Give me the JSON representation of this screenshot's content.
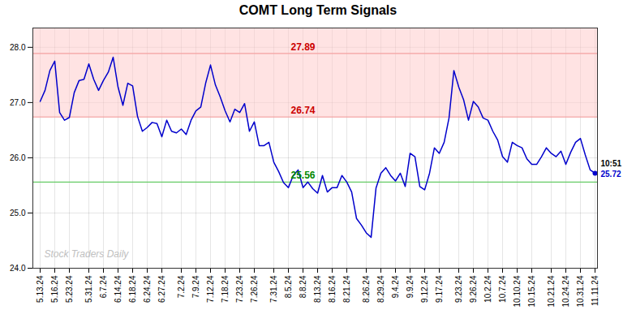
{
  "chart_data": {
    "type": "line",
    "title": "COMT Long Term Signals",
    "color": "#0000cc",
    "grid": true,
    "ylim": [
      24.0,
      28.35
    ],
    "yticks": [
      24,
      25,
      26,
      27,
      28
    ],
    "categories": [
      "5.13.24",
      null,
      null,
      "5.16.24",
      null,
      null,
      "5.23.24",
      null,
      null,
      null,
      "5.31.24",
      null,
      null,
      "6.7.24",
      null,
      null,
      "6.14.24",
      null,
      null,
      "6.18.24",
      null,
      null,
      "6.24.24",
      null,
      null,
      "6.27.24",
      null,
      null,
      null,
      "7.2.24",
      null,
      null,
      "7.9.24",
      null,
      null,
      "7.12.24",
      null,
      null,
      "7.18.24",
      null,
      null,
      "7.23.24",
      null,
      null,
      "7.26.24",
      null,
      null,
      null,
      "7.31.24",
      null,
      null,
      "8.5.24",
      null,
      null,
      "8.8.24",
      null,
      null,
      "8.13.24",
      null,
      null,
      "8.16.24",
      null,
      null,
      "8.21.24",
      null,
      null,
      null,
      "8.26.24",
      null,
      null,
      "8.29.24",
      null,
      null,
      "9.4.24",
      null,
      null,
      "9.9.24",
      null,
      null,
      "9.12.24",
      null,
      null,
      "9.17.24",
      null,
      null,
      null,
      "9.23.24",
      null,
      null,
      "9.26.24",
      null,
      null,
      "10.2.24",
      null,
      null,
      "10.7.24",
      null,
      null,
      "10.10.24",
      null,
      null,
      "10.15.24",
      null,
      null,
      null,
      "10.21.24",
      null,
      null,
      "10.24.24",
      null,
      null,
      "10.31.24",
      null,
      null,
      "11.11.24"
    ],
    "values": [
      27.02,
      27.22,
      27.58,
      27.75,
      26.82,
      26.68,
      26.73,
      27.18,
      27.4,
      27.42,
      27.7,
      27.42,
      27.22,
      27.4,
      27.55,
      27.82,
      27.28,
      26.95,
      27.35,
      27.3,
      26.75,
      26.48,
      26.55,
      26.64,
      26.62,
      26.38,
      26.68,
      26.48,
      26.45,
      26.52,
      26.42,
      26.68,
      26.85,
      26.92,
      27.35,
      27.68,
      27.32,
      27.1,
      26.85,
      26.65,
      26.88,
      26.82,
      26.98,
      26.48,
      26.65,
      26.22,
      26.22,
      26.28,
      25.92,
      25.75,
      25.55,
      25.46,
      25.68,
      25.78,
      25.46,
      25.56,
      25.44,
      25.36,
      25.68,
      25.38,
      25.46,
      25.46,
      25.68,
      25.56,
      25.38,
      24.9,
      24.78,
      24.64,
      24.56,
      25.45,
      25.72,
      25.82,
      25.68,
      25.58,
      25.72,
      25.48,
      26.08,
      26.02,
      25.48,
      25.42,
      25.72,
      26.18,
      26.08,
      26.28,
      26.72,
      27.58,
      27.28,
      27.05,
      26.68,
      27.02,
      26.92,
      26.72,
      26.68,
      26.48,
      26.32,
      26.02,
      25.92,
      26.28,
      26.22,
      26.18,
      25.98,
      25.88,
      25.88,
      26.02,
      26.18,
      26.08,
      26.02,
      26.12,
      25.88,
      26.1,
      26.28,
      26.35,
      26.05,
      25.78,
      25.72
    ],
    "bands": [
      {
        "from": 26.74,
        "to": 27.89,
        "color": "#ffcccc"
      },
      {
        "from": 27.89,
        "to": 28.35,
        "color": "#ffcccc"
      }
    ],
    "hlines": [
      {
        "value": 27.89,
        "label": "27.89",
        "color": "#f4a0a0",
        "label_color": "#cc0000"
      },
      {
        "value": 26.74,
        "label": "26.74",
        "color": "#f4a0a0",
        "label_color": "#cc0000"
      },
      {
        "value": 25.56,
        "label": "25.56",
        "color": "#66cc66",
        "label_color": "#008800"
      }
    ],
    "annotations": [
      {
        "text": "10:51",
        "color": "black"
      },
      {
        "text": "25.72",
        "color": "#0000cc"
      }
    ],
    "watermark": {
      "text": "Stock Traders Daily",
      "color": "#c0c0c0"
    }
  }
}
